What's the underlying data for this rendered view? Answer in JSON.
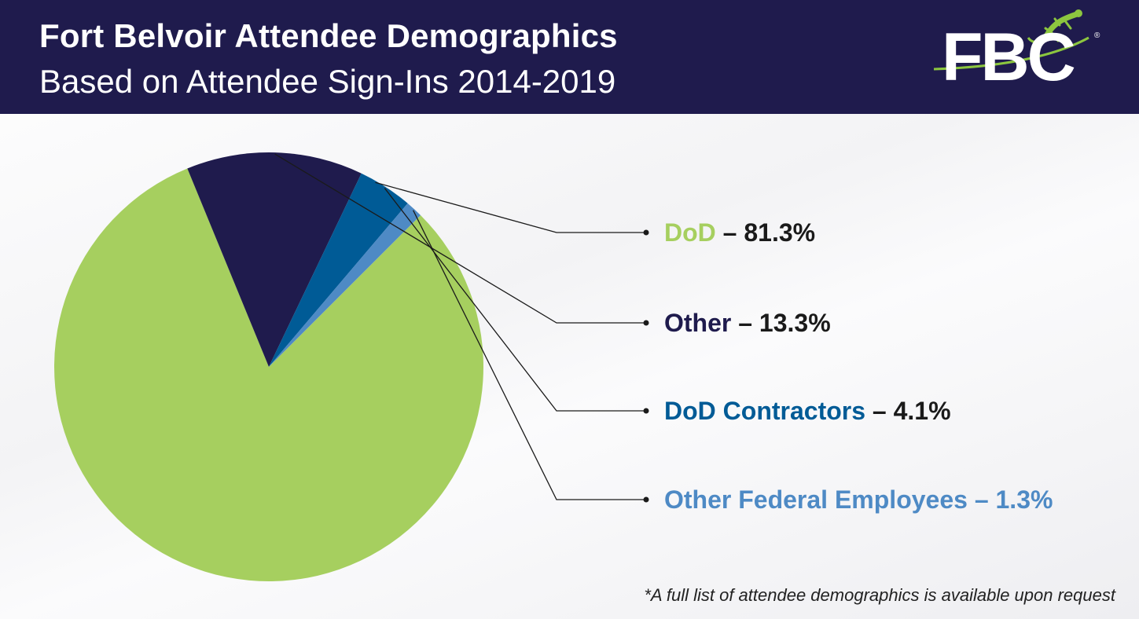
{
  "header": {
    "title": "Fort Belvoir Attendee Demographics",
    "subtitle": "Based on Attendee Sign-Ins 2014-2019",
    "logo_text": "FBC",
    "logo_reg": "®"
  },
  "colors": {
    "header_bg": "#1f1b4d",
    "dod": "#a6cf5f",
    "other": "#1f1b4d",
    "dod_contractors": "#005b96",
    "other_federal": "#4e8ac5"
  },
  "chart_data": {
    "type": "pie",
    "title": "Fort Belvoir Attendee Demographics",
    "subtitle": "Based on Attendee Sign-Ins 2014-2019",
    "slices": [
      {
        "name": "DoD",
        "value": 81.3,
        "label_text": "DoD",
        "value_text": "– 81.3%",
        "color": "#a6cf5f",
        "value_color": "#1a1a1a"
      },
      {
        "name": "Other",
        "value": 13.3,
        "label_text": "Other",
        "value_text": "– 13.3%",
        "color": "#1f1b4d",
        "value_color": "#1a1a1a"
      },
      {
        "name": "DoD Contractors",
        "value": 4.1,
        "label_text": "DoD Contractors",
        "value_text": "– 4.1%",
        "color": "#005b96",
        "value_color": "#1a1a1a"
      },
      {
        "name": "Other Federal Employees",
        "value": 1.3,
        "label_text": "Other Federal Employees",
        "value_text": "– 1.3%",
        "color": "#4e8ac5",
        "value_color": "#4e8ac5"
      }
    ]
  },
  "footnote": "*A full list of attendee demographics is available upon request"
}
